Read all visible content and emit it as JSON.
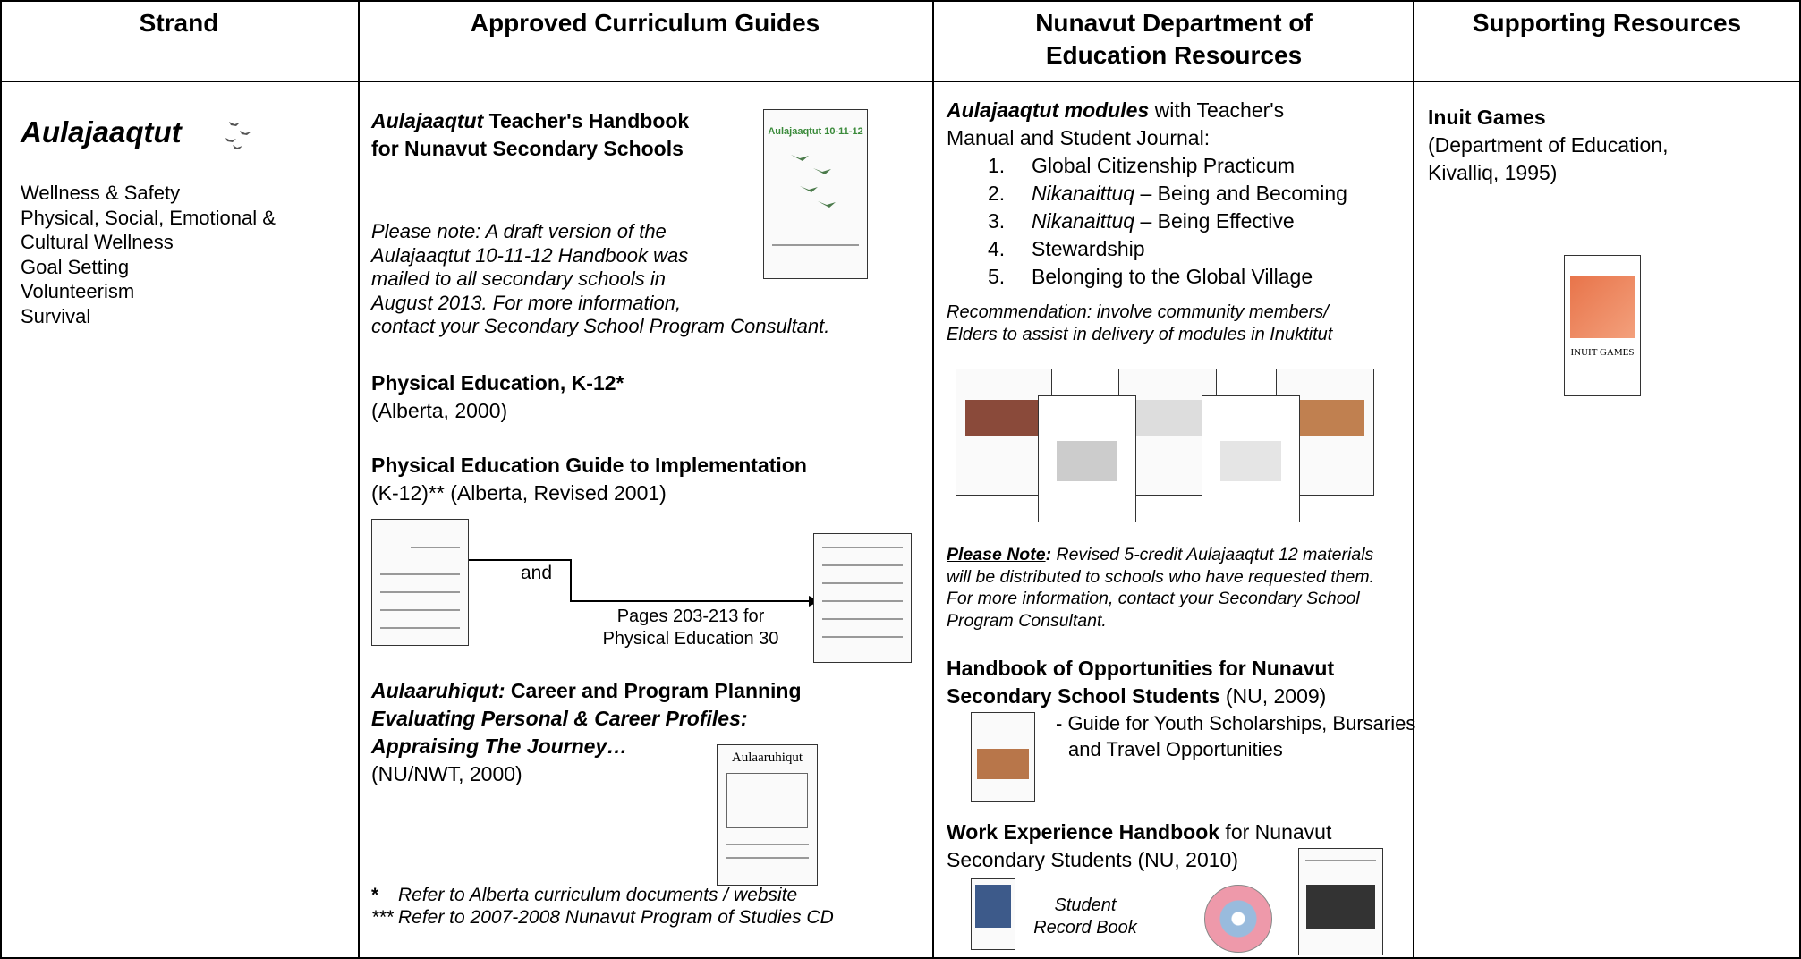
{
  "table": {
    "headers": [
      "Strand",
      "Approved Curriculum Guides",
      "Nunavut Department of Education Resources",
      "Supporting Resources"
    ],
    "strand": {
      "title": "Aulajaaqtut",
      "items": [
        "Wellness & Safety",
        "Physical, Social, Emotional & Cultural Wellness",
        "Goal Setting",
        "Volunteerism",
        "Survival"
      ]
    },
    "guides": {
      "handbook": {
        "title_italic": "Aulajaaqtut",
        "title_rest": " Teacher's Handbook for Nunavut Secondary Schools",
        "cover": "Aulajaaqtut 10-11-12",
        "note": "Please note: A draft version of the Aulajaaqtut 10-11-12 Handbook was mailed to all secondary schools in August 2013. For more information, contact your Secondary School Program Consultant."
      },
      "pe_k12": {
        "title": "Physical Education, K-12*",
        "source": "(Alberta, 2000)"
      },
      "pe_guide": {
        "title": "Physical Education Guide to Implementation",
        "source": "(K-12)** (Alberta, Revised 2001)",
        "connector": "and",
        "pages": [
          "Pages 203-213 for",
          "Physical Education 30"
        ]
      },
      "career": {
        "title_italic": "Aulaaruhiqut:",
        "title_rest": " Career and Program Planning",
        "subtitle": "Evaluating Personal & Career Profiles: Appraising The Journey…",
        "source": "(NU/NWT, 2000)",
        "cover": "Aulaaruhiqut"
      },
      "footnotes": [
        {
          "mark": "*",
          "text": "Refer to Alberta curriculum documents / website"
        },
        {
          "mark": "***",
          "text": "Refer to 2007-2008 Nunavut Program of Studies CD"
        }
      ]
    },
    "nunavut": {
      "modules": {
        "title": "Aulajaaqtut modules",
        "rest": " with Teacher's Manual and Student Journal:",
        "items": [
          {
            "number": "1.",
            "italic": "",
            "text": "Global Citizenship Practicum"
          },
          {
            "number": "2.",
            "italic": "Nikanaittuq",
            "text": " – Being and Becoming"
          },
          {
            "number": "3.",
            "italic": "Nikanaittuq",
            "text": " – Being Effective"
          },
          {
            "number": "4.",
            "italic": "",
            "text": "Stewardship"
          },
          {
            "number": "5.",
            "italic": "",
            "text": "Belonging to the Global Village"
          }
        ]
      },
      "recommendation": "Recommendation: involve community members/ Elders to assist in delivery of modules in Inuktitut",
      "please_note": {
        "label": "Please Note",
        "colon": ":",
        "text": " Revised 5-credit Aulajaaqtut 12 materials will be distributed to schools who have requested them. For more information, contact your Secondary School Program Consultant."
      },
      "opportunities": {
        "title": "Handbook of Opportunities for Nunavut Secondary School Students",
        "source": " (NU, 2009)",
        "description": "- Guide for Youth Scholarships, Bursaries and Travel Opportunities"
      },
      "work": {
        "title": "Work Experience Handbook",
        "rest": " for Nunavut Secondary Students (NU, 2010)",
        "record_book": "Student Record Book"
      }
    },
    "supporting": {
      "title": "Inuit Games",
      "source": "(Department of Education, Kivalliq, 1995)",
      "cover": "INUIT GAMES"
    }
  }
}
